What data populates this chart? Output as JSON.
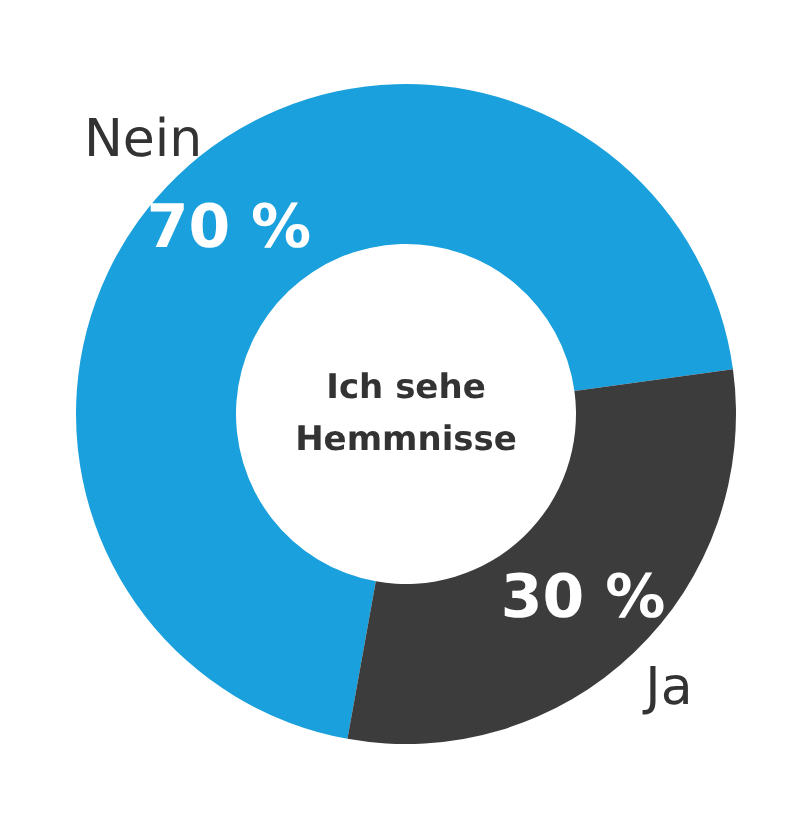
{
  "chart_data": {
    "type": "donut",
    "title": "Ich sehe Hemmnisse",
    "categories": [
      "Nein",
      "Ja"
    ],
    "values": [
      70,
      30
    ],
    "colors": [
      "#1aa0dc",
      "#3c3c3c"
    ],
    "value_labels": [
      "70 %",
      "30 %"
    ]
  }
}
